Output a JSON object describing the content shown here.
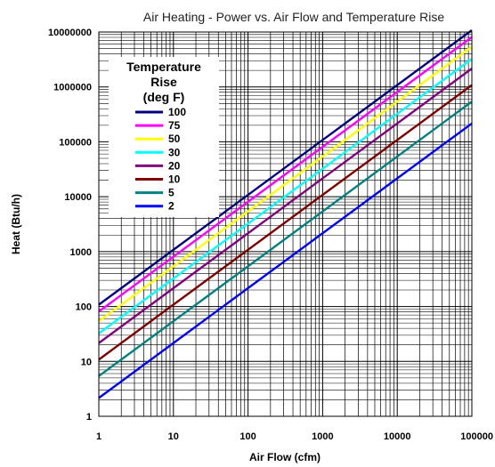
{
  "chart_data": {
    "type": "line",
    "title": "Air Heating - Power vs. Air Flow and Temperature Rise",
    "xlabel": "Air Flow (cfm)",
    "ylabel": "Heat (Btu/h)",
    "x_scale": "log",
    "y_scale": "log",
    "xlim": [
      1,
      100000
    ],
    "ylim": [
      1,
      10000000
    ],
    "x_ticks": [
      "1",
      "10",
      "100",
      "1000",
      "10000",
      "100000"
    ],
    "y_ticks": [
      "1",
      "10",
      "100",
      "1000",
      "10000",
      "100000",
      "1000000",
      "10000000"
    ],
    "grid": true,
    "legend": {
      "title_lines": [
        "Temperature",
        "Rise",
        "(deg F)"
      ],
      "placement": "top-left"
    },
    "x": [
      1,
      100000
    ],
    "series": [
      {
        "name": "100",
        "color": "#000080",
        "values": [
          108,
          10800000
        ]
      },
      {
        "name": "75",
        "color": "#ff00ff",
        "values": [
          81,
          8100000
        ]
      },
      {
        "name": "50",
        "color": "#ffff00",
        "values": [
          54,
          5400000
        ]
      },
      {
        "name": "30",
        "color": "#00ffff",
        "values": [
          32.4,
          3240000
        ]
      },
      {
        "name": "20",
        "color": "#800080",
        "values": [
          21.6,
          2160000
        ]
      },
      {
        "name": "10",
        "color": "#800000",
        "values": [
          10.8,
          1080000
        ]
      },
      {
        "name": "5",
        "color": "#008080",
        "values": [
          5.4,
          540000
        ]
      },
      {
        "name": "2",
        "color": "#0000ff",
        "values": [
          2.16,
          216000
        ]
      }
    ]
  }
}
